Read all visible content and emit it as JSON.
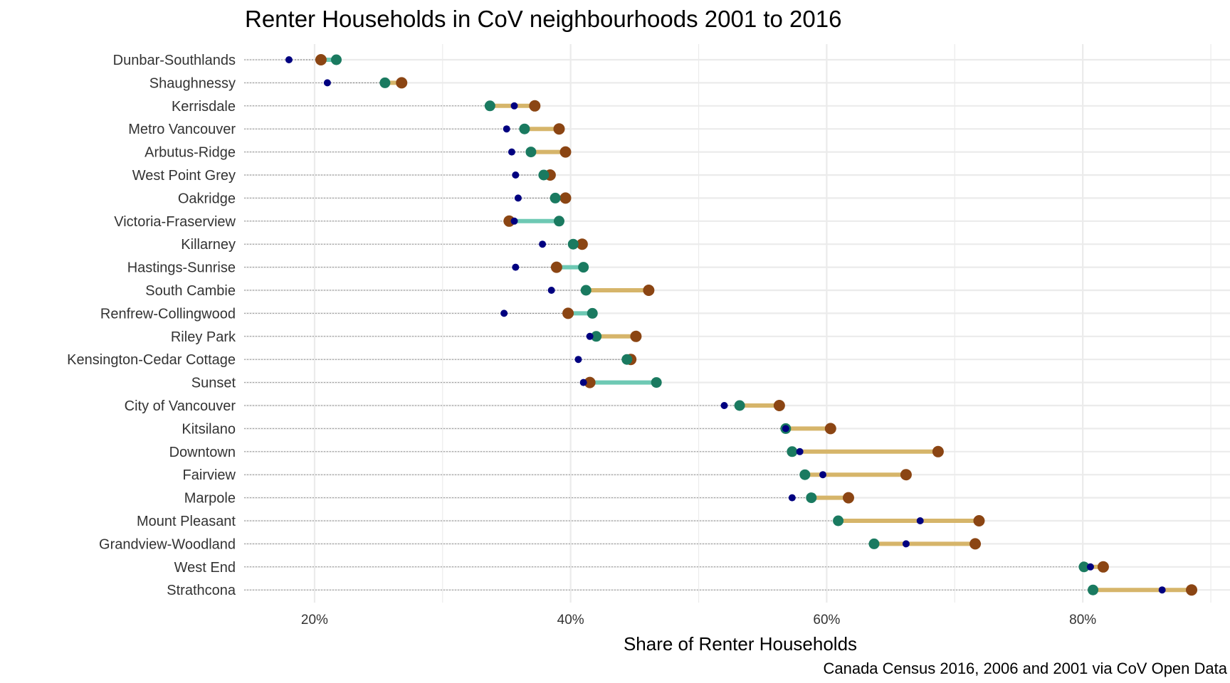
{
  "chart_data": {
    "type": "dumbbell",
    "title": "Renter Households in CoV neighbourhoods 2001 to 2016",
    "xlabel": "Share of Renter Households",
    "caption": "Canada Census 2016, 2006 and 2001 via CoV Open Data",
    "x_ticks": [
      {
        "value": 0.2,
        "label": "20%"
      },
      {
        "value": 0.4,
        "label": "40%"
      },
      {
        "value": 0.6,
        "label": "60%"
      },
      {
        "value": 0.8,
        "label": "80%"
      }
    ],
    "xlim": [
      0.145,
      0.915
    ],
    "series_names": [
      "2001",
      "2006",
      "2016"
    ],
    "colors": {
      "2001": "#000080",
      "2006": "#1a7a60",
      "2016": "#8b4513",
      "increase_line": "#d6b56a",
      "decrease_line": "#6ec9b4",
      "leader": "#9a9a9a",
      "grid": "#ebebeb"
    },
    "categories": [
      {
        "name": "Dunbar-Southlands",
        "y2001": 0.18,
        "y2006": 0.217,
        "y2016": 0.205
      },
      {
        "name": "Shaughnessy",
        "y2001": 0.21,
        "y2006": 0.255,
        "y2016": 0.268
      },
      {
        "name": "Kerrisdale",
        "y2001": 0.356,
        "y2006": 0.337,
        "y2016": 0.372
      },
      {
        "name": "Metro Vancouver",
        "y2001": 0.35,
        "y2006": 0.364,
        "y2016": 0.391
      },
      {
        "name": "Arbutus-Ridge",
        "y2001": 0.354,
        "y2006": 0.369,
        "y2016": 0.396
      },
      {
        "name": "West Point Grey",
        "y2001": 0.357,
        "y2006": 0.379,
        "y2016": 0.384
      },
      {
        "name": "Oakridge",
        "y2001": 0.359,
        "y2006": 0.388,
        "y2016": 0.396
      },
      {
        "name": "Victoria-Fraserview",
        "y2001": 0.356,
        "y2006": 0.391,
        "y2016": 0.352
      },
      {
        "name": "Killarney",
        "y2001": 0.378,
        "y2006": 0.402,
        "y2016": 0.409
      },
      {
        "name": "Hastings-Sunrise",
        "y2001": 0.357,
        "y2006": 0.41,
        "y2016": 0.389
      },
      {
        "name": "South Cambie",
        "y2001": 0.385,
        "y2006": 0.412,
        "y2016": 0.461
      },
      {
        "name": "Renfrew-Collingwood",
        "y2001": 0.348,
        "y2006": 0.417,
        "y2016": 0.398
      },
      {
        "name": "Riley Park",
        "y2001": 0.415,
        "y2006": 0.42,
        "y2016": 0.451
      },
      {
        "name": "Kensington-Cedar Cottage",
        "y2001": 0.406,
        "y2006": 0.444,
        "y2016": 0.447
      },
      {
        "name": "Sunset",
        "y2001": 0.41,
        "y2006": 0.467,
        "y2016": 0.415
      },
      {
        "name": "City of Vancouver",
        "y2001": 0.52,
        "y2006": 0.532,
        "y2016": 0.563
      },
      {
        "name": "Kitsilano",
        "y2001": 0.568,
        "y2006": 0.568,
        "y2016": 0.603
      },
      {
        "name": "Downtown",
        "y2001": 0.579,
        "y2006": 0.573,
        "y2016": 0.687
      },
      {
        "name": "Fairview",
        "y2001": 0.597,
        "y2006": 0.583,
        "y2016": 0.662
      },
      {
        "name": "Marpole",
        "y2001": 0.573,
        "y2006": 0.588,
        "y2016": 0.617
      },
      {
        "name": "Mount Pleasant",
        "y2001": 0.673,
        "y2006": 0.609,
        "y2016": 0.719
      },
      {
        "name": "Grandview-Woodland",
        "y2001": 0.662,
        "y2006": 0.637,
        "y2016": 0.716
      },
      {
        "name": "West End",
        "y2001": 0.806,
        "y2006": 0.801,
        "y2016": 0.816
      },
      {
        "name": "Strathcona",
        "y2001": 0.862,
        "y2006": 0.808,
        "y2016": 0.885
      }
    ]
  }
}
